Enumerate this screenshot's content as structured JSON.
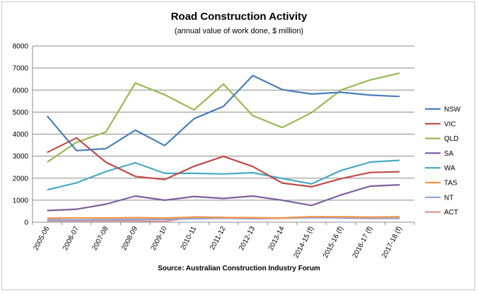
{
  "chart_data": {
    "type": "line",
    "title": "Road Construction Activity",
    "subtitle": "(annual value of work done, $ million)",
    "source": "Source: Australian Construction Industry Forum",
    "xlabel": "",
    "ylabel": "",
    "ylim": [
      0,
      8000
    ],
    "yticks": [
      0,
      1000,
      2000,
      3000,
      4000,
      5000,
      6000,
      7000,
      8000
    ],
    "grid": true,
    "legend_position": "right",
    "categories": [
      "2005-06",
      "2006-07",
      "2007-08",
      "2008-09",
      "2009-10",
      "2010-11",
      "2011-12",
      "2012-13",
      "2013-14",
      "2014-15 (f)",
      "2015-16 (f)",
      "2016-17 (f)",
      "2017-18 (f)"
    ],
    "series": [
      {
        "name": "NSW",
        "color": "#4a7ebb",
        "values": [
          4820,
          3250,
          3340,
          4180,
          3480,
          4700,
          5260,
          6660,
          6020,
          5820,
          5900,
          5770,
          5710
        ]
      },
      {
        "name": "VIC",
        "color": "#be4b48",
        "values": [
          3170,
          3830,
          2720,
          2080,
          1940,
          2540,
          2990,
          2530,
          1780,
          1610,
          1980,
          2260,
          2290
        ]
      },
      {
        "name": "QLD",
        "color": "#98b954",
        "values": [
          2730,
          3630,
          4100,
          6320,
          5790,
          5100,
          6270,
          4840,
          4300,
          4970,
          6000,
          6460,
          6770
        ]
      },
      {
        "name": "SA",
        "color": "#7d60a0",
        "values": [
          530,
          590,
          820,
          1190,
          1000,
          1170,
          1080,
          1190,
          1000,
          760,
          1240,
          1640,
          1700
        ]
      },
      {
        "name": "WA",
        "color": "#46aac5",
        "values": [
          1470,
          1790,
          2300,
          2700,
          2220,
          2220,
          2190,
          2250,
          1990,
          1740,
          2350,
          2730,
          2810
        ]
      },
      {
        "name": "TAS",
        "color": "#f79646",
        "values": [
          180,
          200,
          190,
          210,
          190,
          230,
          210,
          210,
          190,
          250,
          250,
          230,
          250
        ]
      },
      {
        "name": "NT",
        "color": "#8fa4d9",
        "values": [
          110,
          110,
          120,
          130,
          130,
          160,
          180,
          160,
          180,
          200,
          200,
          190,
          190
        ]
      },
      {
        "name": "ACT",
        "color": "#d99694",
        "values": [
          60,
          60,
          60,
          60,
          40,
          240,
          220,
          170,
          200,
          250,
          190,
          170,
          170
        ]
      }
    ]
  }
}
